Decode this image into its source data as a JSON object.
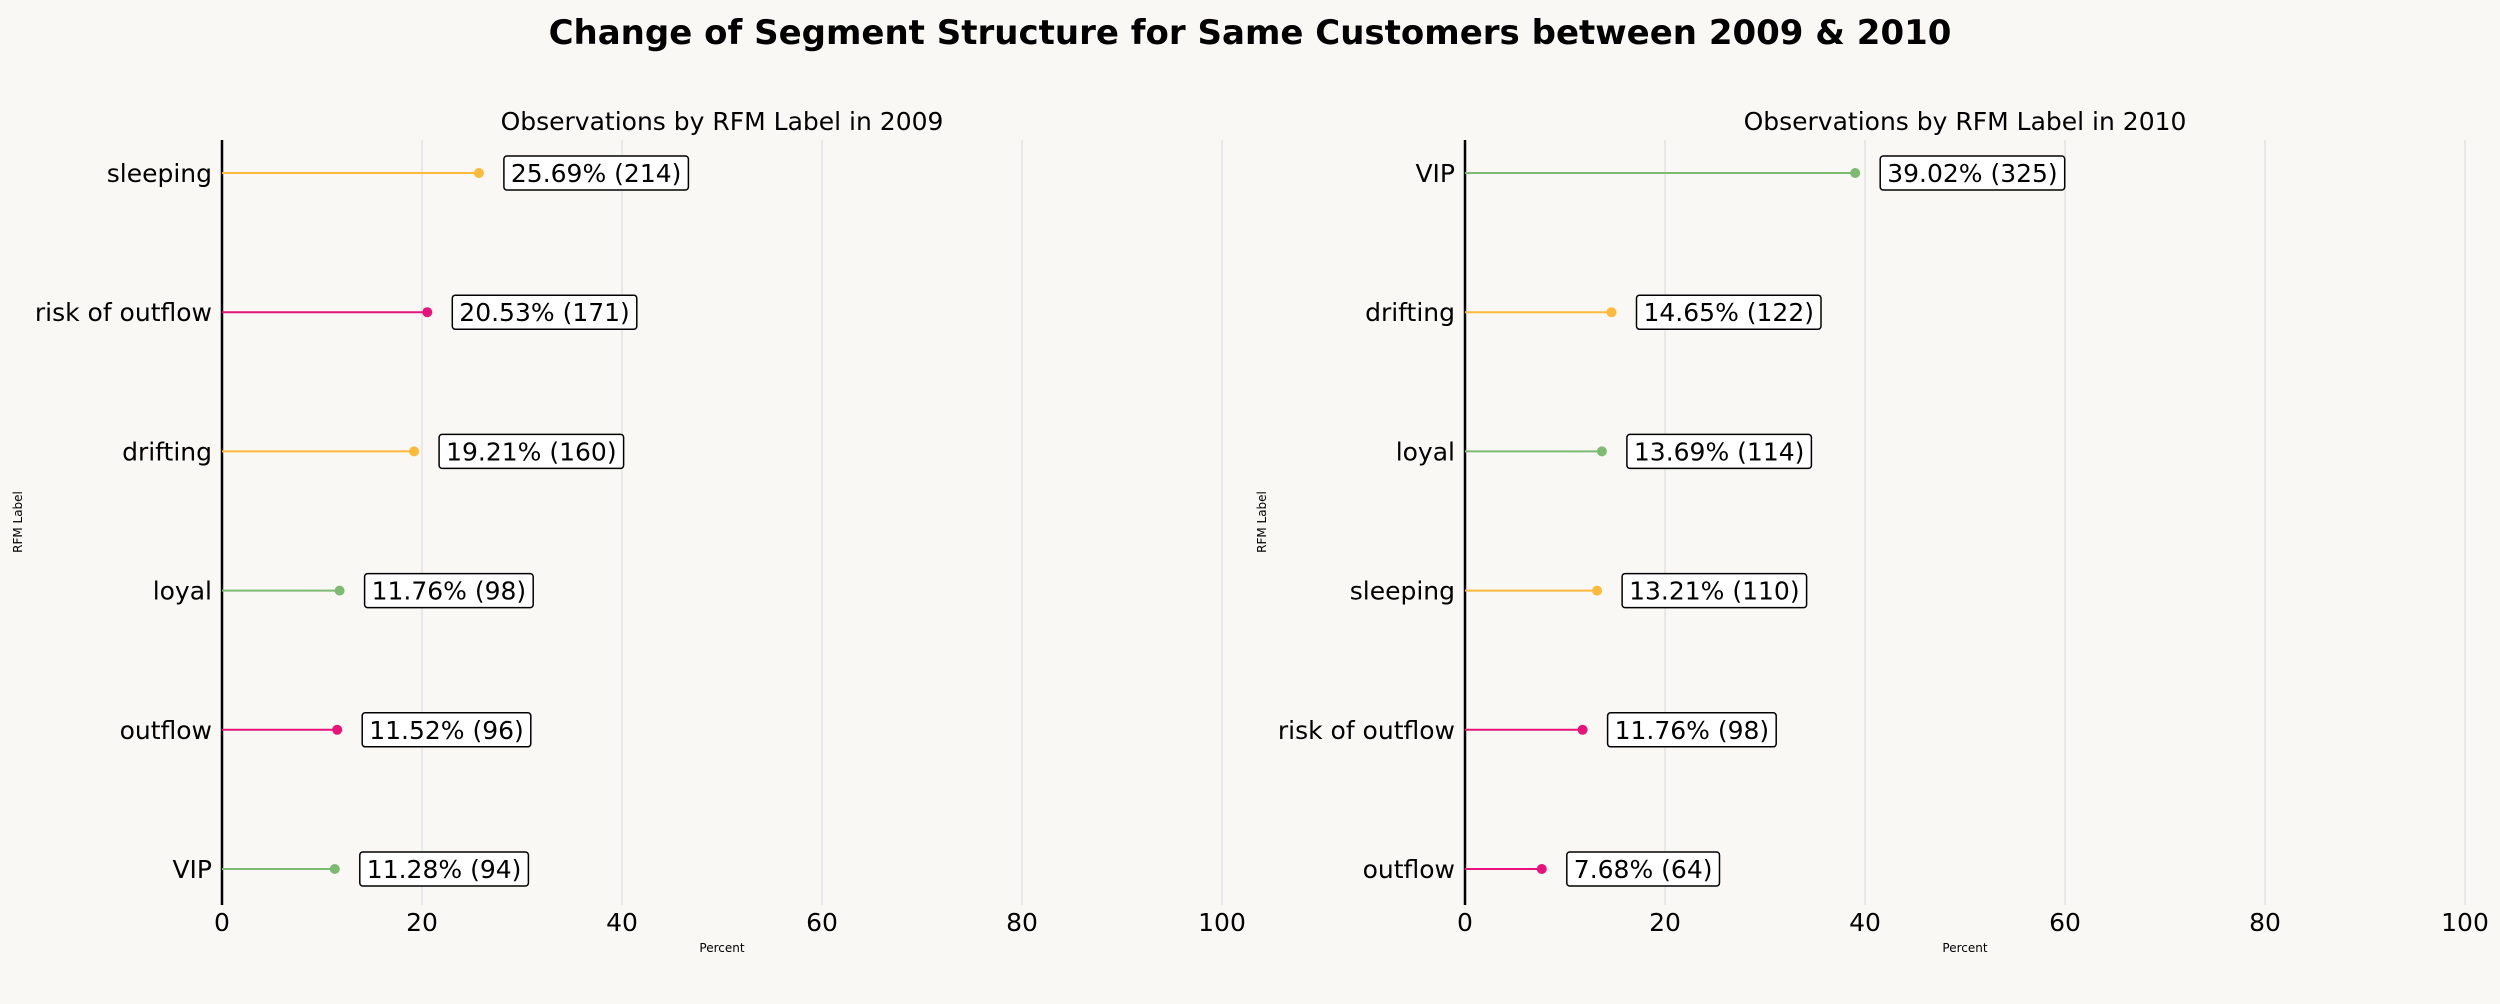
{
  "title": "Change of Segment Structure for Same Customers between 2009 & 2010",
  "colors": {
    "background": "#f9f8f4",
    "sleeping": "#ffb93b",
    "drifting": "#ffb93b",
    "risk of outflow": "#e6137a",
    "outflow": "#e6137a",
    "loyal": "#7dba72",
    "VIP": "#7dba72",
    "grid": "#e3e3e3"
  },
  "chart_data": [
    {
      "type": "lollipop",
      "title": "Observations by RFM Label in 2009",
      "xlabel": "Percent",
      "ylabel": "RFM Label",
      "xlim": [
        0,
        100
      ],
      "xticks": [
        0,
        20,
        40,
        60,
        80,
        100
      ],
      "grid": "vertical",
      "categories": [
        "sleeping",
        "risk of outflow",
        "drifting",
        "loyal",
        "outflow",
        "VIP"
      ],
      "values": [
        25.69,
        20.53,
        19.21,
        11.76,
        11.52,
        11.28
      ],
      "counts": [
        214,
        171,
        160,
        98,
        96,
        94
      ],
      "labels": [
        "25.69% (214)",
        "20.53% (171)",
        "19.21% (160)",
        "11.76% (98)",
        "11.52% (96)",
        "11.28% (94)"
      ]
    },
    {
      "type": "lollipop",
      "title": "Observations by RFM Label in 2010",
      "xlabel": "Percent",
      "ylabel": "RFM Label",
      "xlim": [
        0,
        100
      ],
      "xticks": [
        0,
        20,
        40,
        60,
        80,
        100
      ],
      "grid": "vertical",
      "categories": [
        "VIP",
        "drifting",
        "loyal",
        "sleeping",
        "risk of outflow",
        "outflow"
      ],
      "values": [
        39.02,
        14.65,
        13.69,
        13.21,
        11.76,
        7.68
      ],
      "counts": [
        325,
        122,
        114,
        110,
        98,
        64
      ],
      "labels": [
        "39.02% (325)",
        "14.65% (122)",
        "13.69% (114)",
        "13.21% (110)",
        "11.76% (98)",
        "7.68% (64)"
      ]
    }
  ]
}
